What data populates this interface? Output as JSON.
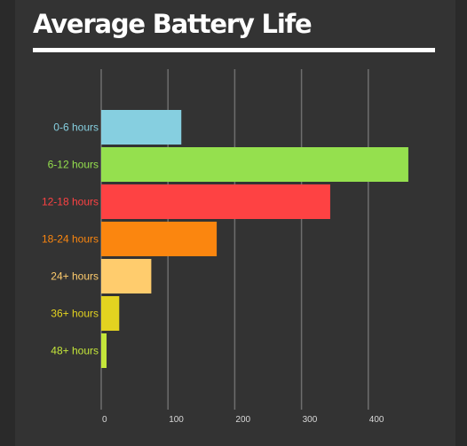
{
  "chart_data": {
    "type": "bar",
    "orientation": "horizontal",
    "title": "Average Battery Life",
    "xlabel": "",
    "ylabel": "",
    "xlim": [
      0,
      460
    ],
    "ticks": [
      0,
      100,
      200,
      300,
      400
    ],
    "tick_labels": [
      "0",
      "100",
      "200",
      "300",
      "400"
    ],
    "grid": true,
    "categories": [
      "0-6 hours",
      "6-12 hours",
      "12-18 hours",
      "18-24 hours",
      "24+ hours",
      "36+ hours",
      "48+ hours"
    ],
    "values": [
      120,
      460,
      343,
      173,
      75,
      27,
      8
    ],
    "colors": [
      "#86cfe0",
      "#95e04e",
      "#fe4243",
      "#fb860f",
      "#ffcc6d",
      "#e3d320",
      "#c4e63a"
    ]
  }
}
